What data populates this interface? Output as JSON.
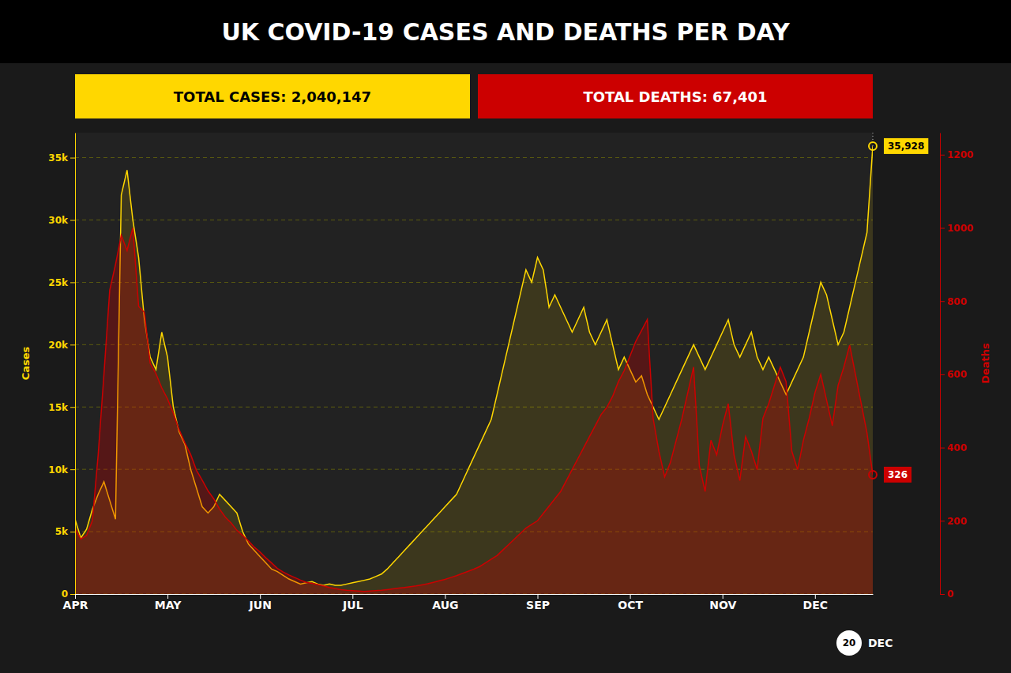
{
  "chart_data": {
    "type": "line",
    "title": "UK COVID-19 CASES AND DEATHS PER DAY",
    "ylabel": "Cases",
    "y2label": "Deaths",
    "categories": [
      "APR",
      null,
      null,
      null,
      null,
      null,
      null,
      null,
      null,
      null,
      null,
      null,
      null,
      null,
      null,
      null,
      "MAY",
      null,
      null,
      null,
      null,
      null,
      null,
      null,
      null,
      null,
      null,
      null,
      null,
      null,
      null,
      null,
      "JUN",
      null,
      null,
      null,
      null,
      null,
      null,
      null,
      null,
      null,
      null,
      null,
      null,
      null,
      null,
      null,
      "JUL",
      null,
      null,
      null,
      null,
      null,
      null,
      null,
      null,
      null,
      null,
      null,
      null,
      null,
      null,
      null,
      "AUG",
      null,
      null,
      null,
      null,
      null,
      null,
      null,
      null,
      null,
      null,
      null,
      null,
      null,
      null,
      null,
      "SEP",
      null,
      null,
      null,
      null,
      null,
      null,
      null,
      null,
      null,
      null,
      null,
      null,
      null,
      null,
      null,
      "OCT",
      null,
      null,
      null,
      null,
      null,
      null,
      null,
      null,
      null,
      null,
      null,
      null,
      null,
      null,
      null,
      "NOV",
      null,
      null,
      null,
      null,
      null,
      null,
      null,
      null,
      null,
      null,
      null,
      null,
      null,
      null,
      null,
      "DEC",
      null,
      null,
      null,
      null,
      null,
      null,
      null,
      null,
      null,
      null
    ],
    "series": [
      {
        "color": "#FFD700",
        "values": [
          6000,
          4500,
          5200,
          6800,
          8000,
          9000,
          7500,
          6000,
          32000,
          34000,
          30000,
          27000,
          22000,
          19000,
          18000,
          21000,
          19000,
          15000,
          13000,
          12000,
          10000,
          8500,
          7000,
          6500,
          7000,
          8000,
          7500,
          7000,
          6500,
          5000,
          4000,
          3500,
          3000,
          2500,
          2000,
          1800,
          1500,
          1200,
          1000,
          800,
          900,
          1000,
          800,
          700,
          800,
          700,
          700,
          800,
          900,
          1000,
          1100,
          1200,
          1400,
          1600,
          2000,
          2500,
          3000,
          3500,
          4000,
          4500,
          5000,
          5500,
          6000,
          6500,
          7000,
          7500,
          8000,
          9000,
          10000,
          11000,
          12000,
          13000,
          14000,
          16000,
          18000,
          20000,
          22000,
          24000,
          26000,
          25000,
          27000,
          26000,
          23000,
          24000,
          23000,
          22000,
          21000,
          22000,
          23000,
          21000,
          20000,
          21000,
          22000,
          20000,
          18000,
          19000,
          18000,
          17000,
          17500,
          16000,
          15000,
          14000,
          15000,
          16000,
          17000,
          18000,
          19000,
          20000,
          19000,
          18000,
          19000,
          20000,
          21000,
          22000,
          20000,
          19000,
          20000,
          21000,
          19000,
          18000,
          19000,
          18000,
          17000,
          16000,
          17000,
          18000,
          19000,
          21000,
          23000,
          25000,
          24000,
          22000,
          20000,
          21000,
          23000,
          25000,
          27000,
          29000,
          35928
        ]
      },
      {
        "color": "#CC0000",
        "axis": "y2",
        "values": [
          180,
          150,
          160,
          200,
          380,
          600,
          830,
          900,
          980,
          938,
          1000,
          786,
          769,
          630,
          602,
          563,
          533,
          494,
          449,
          413,
          381,
          338,
          311,
          282,
          260,
          232,
          210,
          194,
          174,
          160,
          145,
          128,
          115,
          99,
          85,
          70,
          60,
          52,
          45,
          38,
          32,
          29,
          26,
          22,
          18,
          15,
          12,
          10,
          9,
          8,
          7,
          8,
          9,
          10,
          12,
          14,
          16,
          18,
          20,
          22,
          25,
          28,
          32,
          36,
          40,
          45,
          50,
          56,
          62,
          68,
          75,
          85,
          95,
          105,
          120,
          135,
          150,
          165,
          180,
          190,
          200,
          220,
          240,
          260,
          280,
          310,
          340,
          370,
          400,
          430,
          460,
          490,
          510,
          540,
          580,
          610,
          650,
          690,
          720,
          750,
          480,
          390,
          320,
          360,
          420,
          480,
          550,
          620,
          350,
          280,
          420,
          380,
          460,
          520,
          380,
          310,
          430,
          390,
          340,
          480,
          520,
          570,
          620,
          580,
          390,
          340,
          420,
          480,
          550,
          600,
          530,
          460,
          570,
          620,
          680,
          600,
          520,
          440,
          326
        ]
      }
    ],
    "ylim": [
      0,
      37000
    ],
    "yticks": [
      0,
      {
        "value": 5000,
        "label": "5k"
      },
      {
        "value": 10000,
        "label": "10k"
      },
      {
        "value": 15000,
        "label": "15k"
      },
      {
        "value": 20000,
        "label": "20k"
      },
      {
        "value": 25000,
        "label": "25k"
      },
      {
        "value": 30000,
        "label": "30k"
      },
      {
        "value": 35000,
        "label": "35k"
      }
    ],
    "y2lim": [
      0,
      1260
    ],
    "y2ticks": [
      0,
      200,
      400,
      600,
      800,
      1000,
      1200
    ],
    "grid": true,
    "annotations": [
      {
        "text": "TOTAL CASES: 2,040,147",
        "color": "#FFD700"
      },
      {
        "text": "TOTAL DEATHS: 67,401",
        "color": "#CC0000"
      },
      {
        "text": "35,928",
        "value": 35928,
        "axis": "y",
        "color": "#FFD700"
      },
      {
        "text": "326",
        "value": 326,
        "axis": "y2",
        "color": "#CC0000"
      },
      {
        "text": "20"
      },
      {
        "text": "DEC"
      }
    ]
  }
}
